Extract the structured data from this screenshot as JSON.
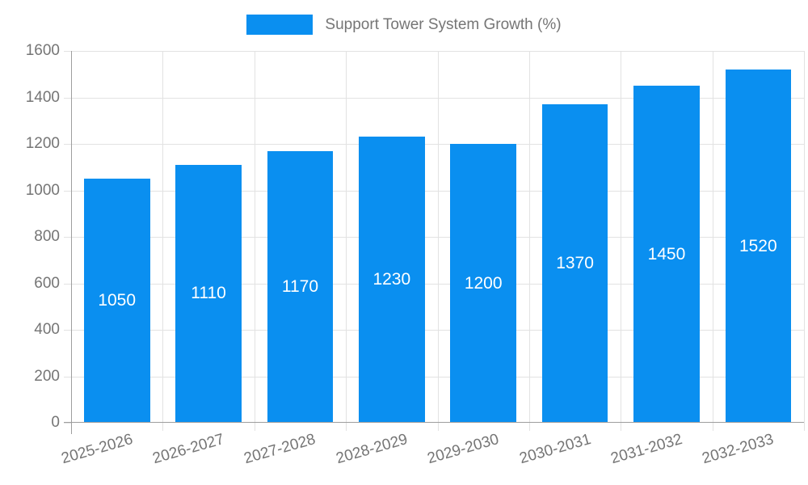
{
  "legend": {
    "label": "Support Tower System Growth (%)"
  },
  "chart_data": {
    "type": "bar",
    "title": "Support Tower System Growth (%)",
    "categories": [
      "2025-2026",
      "2026-2027",
      "2027-2028",
      "2028-2029",
      "2029-2030",
      "2030-2031",
      "2031-2032",
      "2032-2033"
    ],
    "values": [
      1050,
      1110,
      1170,
      1230,
      1200,
      1370,
      1450,
      1520
    ],
    "series": [
      {
        "name": "Support Tower System Growth (%)",
        "values": [
          1050,
          1110,
          1170,
          1230,
          1200,
          1370,
          1450,
          1520
        ]
      }
    ],
    "xlabel": "",
    "ylabel": "",
    "ylim": [
      0,
      1600
    ],
    "yticks": [
      0,
      200,
      400,
      600,
      800,
      1000,
      1200,
      1400,
      1600
    ],
    "grid": true,
    "legend_position": "top",
    "colors": {
      "bar": "#0a8ff0",
      "value_label": "#ffffff",
      "axis_text": "#757575",
      "grid_line": "#e2e2e2",
      "axis_line": "#9e9e9e"
    }
  }
}
